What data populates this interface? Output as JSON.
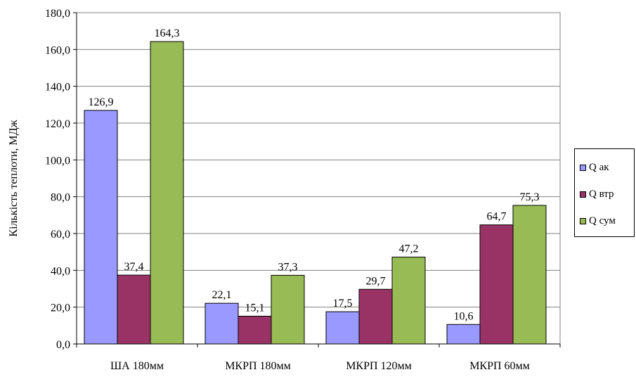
{
  "chart_data": {
    "type": "bar",
    "ylabel": "Кількість теплоти, МДж",
    "xlabel": "",
    "ylim": [
      0,
      180
    ],
    "yticks": [
      "0,0",
      "20,0",
      "40,0",
      "60,0",
      "80,0",
      "100,0",
      "120,0",
      "140,0",
      "160,0",
      "180,0"
    ],
    "categories": [
      "ША 180мм",
      "МКРП 180мм",
      "МКРП 120мм",
      "МКРП 60мм"
    ],
    "series": [
      {
        "name": "Q ак",
        "color": "#9999ff",
        "values": [
          126.9,
          22.1,
          17.5,
          10.6
        ],
        "labels": [
          "126,9",
          "22,1",
          "17,5",
          "10,6"
        ]
      },
      {
        "name": "Q втр",
        "color": "#993366",
        "values": [
          37.4,
          15.1,
          29.7,
          64.7
        ],
        "labels": [
          "37,4",
          "15,1",
          "29,7",
          "64,7"
        ]
      },
      {
        "name": "Q сум",
        "color": "#99bb55",
        "values": [
          164.3,
          37.3,
          47.2,
          75.3
        ],
        "labels": [
          "164,3",
          "37,3",
          "47,2",
          "75,3"
        ]
      }
    ],
    "grid": true,
    "legend_position": "right"
  }
}
